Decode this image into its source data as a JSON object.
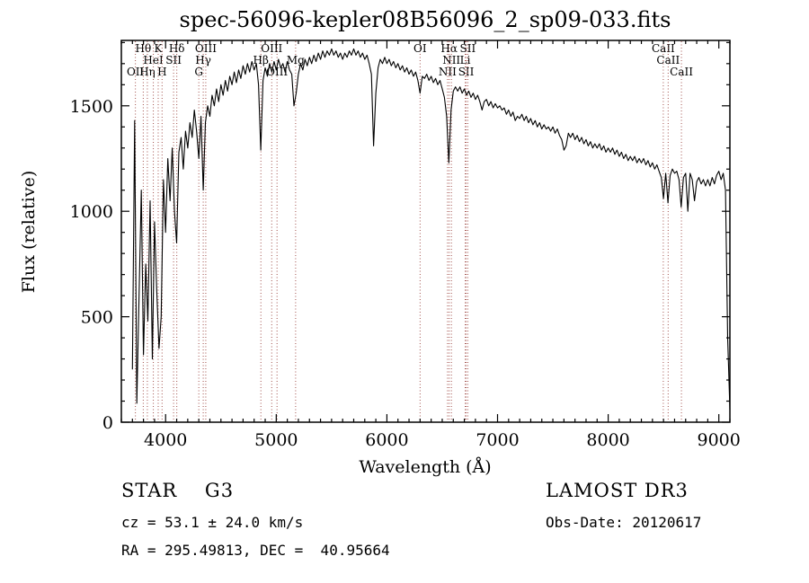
{
  "chart_data": {
    "type": "line",
    "title": "spec-56096-kepler08B56096_2_sp09-033.fits",
    "xlabel": "Wavelength (Å)",
    "ylabel": "Flux (relative)",
    "xlim": [
      3600,
      9100
    ],
    "ylim": [
      0,
      1810
    ],
    "x_ticks": [
      4000,
      5000,
      6000,
      7000,
      8000,
      9000
    ],
    "y_ticks": [
      0,
      500,
      1000,
      1500
    ],
    "x_minor_step": 100,
    "y_minor_step": 100,
    "grid": false,
    "legend": "none",
    "line_color": "#000000",
    "marker_line_color": "#a14f4a",
    "spectral_lines": [
      {
        "wavelength": 3727,
        "label": "OII",
        "row": 2
      },
      {
        "wavelength": 3798,
        "label": "Hθ",
        "row": 0
      },
      {
        "wavelength": 3835,
        "label": "Hη",
        "row": 2
      },
      {
        "wavelength": 3889,
        "label": "HeI",
        "row": 1
      },
      {
        "wavelength": 3933,
        "label": "K",
        "row": 0
      },
      {
        "wavelength": 3968,
        "label": "H",
        "row": 2
      },
      {
        "wavelength": 4072,
        "label": "SII",
        "row": 1
      },
      {
        "wavelength": 4101,
        "label": "Hδ",
        "row": 0
      },
      {
        "wavelength": 4300,
        "label": "G",
        "row": 2
      },
      {
        "wavelength": 4340,
        "label": "Hγ",
        "row": 1
      },
      {
        "wavelength": 4363,
        "label": "OIII",
        "row": 0
      },
      {
        "wavelength": 4861,
        "label": "Hβ",
        "row": 1
      },
      {
        "wavelength": 4959,
        "label": "OIII",
        "row": 0
      },
      {
        "wavelength": 5007,
        "label": "OIII",
        "row": 2
      },
      {
        "wavelength": 5175,
        "label": "Mg",
        "row": 1
      },
      {
        "wavelength": 6300,
        "label": "OI",
        "row": 0
      },
      {
        "wavelength": 6548,
        "label": "NII",
        "row": 2
      },
      {
        "wavelength": 6563,
        "label": "Hα",
        "row": 0
      },
      {
        "wavelength": 6583,
        "label": "NII",
        "row": 1
      },
      {
        "wavelength": 6708,
        "label": "Li",
        "row": 1
      },
      {
        "wavelength": 6716,
        "label": "SII",
        "row": 2
      },
      {
        "wavelength": 6731,
        "label": "SII",
        "row": 0
      },
      {
        "wavelength": 8498,
        "label": "CaII",
        "row": 0
      },
      {
        "wavelength": 8542,
        "label": "CaII",
        "row": 1
      },
      {
        "wavelength": 8662,
        "label": "CaII",
        "row": 2
      }
    ],
    "spectrum": {
      "start": 3700,
      "step": 20,
      "flux": [
        250,
        1430,
        90,
        600,
        1100,
        320,
        750,
        480,
        1050,
        300,
        950,
        620,
        350,
        500,
        1150,
        900,
        1250,
        1050,
        1300,
        1000,
        850,
        1280,
        1350,
        1200,
        1380,
        1300,
        1420,
        1350,
        1480,
        1380,
        1250,
        1450,
        1100,
        1420,
        1500,
        1450,
        1550,
        1500,
        1580,
        1520,
        1600,
        1550,
        1620,
        1570,
        1640,
        1600,
        1660,
        1610,
        1670,
        1630,
        1690,
        1650,
        1700,
        1660,
        1710,
        1670,
        1700,
        1600,
        1290,
        1620,
        1680,
        1640,
        1700,
        1660,
        1710,
        1670,
        1720,
        1680,
        1700,
        1660,
        1710,
        1670,
        1650,
        1500,
        1560,
        1650,
        1700,
        1670,
        1720,
        1690,
        1730,
        1700,
        1740,
        1710,
        1750,
        1720,
        1760,
        1730,
        1760,
        1740,
        1770,
        1740,
        1760,
        1730,
        1750,
        1720,
        1750,
        1730,
        1760,
        1740,
        1770,
        1740,
        1760,
        1730,
        1750,
        1720,
        1740,
        1700,
        1650,
        1310,
        1560,
        1680,
        1720,
        1700,
        1730,
        1700,
        1720,
        1690,
        1710,
        1680,
        1700,
        1670,
        1690,
        1660,
        1680,
        1650,
        1670,
        1640,
        1660,
        1620,
        1560,
        1640,
        1630,
        1650,
        1620,
        1640,
        1610,
        1630,
        1600,
        1620,
        1580,
        1540,
        1450,
        1230,
        1480,
        1570,
        1590,
        1570,
        1590,
        1560,
        1580,
        1550,
        1570,
        1540,
        1560,
        1530,
        1550,
        1520,
        1480,
        1520,
        1530,
        1500,
        1520,
        1490,
        1510,
        1490,
        1500,
        1480,
        1490,
        1460,
        1480,
        1450,
        1470,
        1430,
        1450,
        1440,
        1460,
        1430,
        1450,
        1420,
        1440,
        1410,
        1430,
        1400,
        1420,
        1390,
        1410,
        1390,
        1400,
        1380,
        1400,
        1370,
        1390,
        1360,
        1340,
        1290,
        1310,
        1370,
        1350,
        1370,
        1340,
        1360,
        1330,
        1350,
        1320,
        1340,
        1310,
        1330,
        1300,
        1320,
        1300,
        1320,
        1290,
        1310,
        1280,
        1300,
        1280,
        1300,
        1270,
        1290,
        1260,
        1280,
        1250,
        1270,
        1240,
        1260,
        1240,
        1260,
        1230,
        1250,
        1230,
        1250,
        1220,
        1240,
        1210,
        1230,
        1200,
        1220,
        1190,
        1160,
        1060,
        1180,
        1040,
        1170,
        1200,
        1180,
        1190,
        1150,
        1020,
        1160,
        1180,
        1000,
        1180,
        1150,
        1050,
        1140,
        1160,
        1130,
        1150,
        1120,
        1150,
        1120,
        1160,
        1130,
        1170,
        1190,
        1150,
        1180,
        1100,
        400,
        60
      ]
    }
  },
  "footer": {
    "class_label": "STAR    G3",
    "survey": "LAMOST DR3",
    "cz": "cz = 53.1 ± 24.0 km/s",
    "obs_date": "Obs-Date: 20120617",
    "coords": "RA = 295.49813, DEC =  40.95664"
  }
}
